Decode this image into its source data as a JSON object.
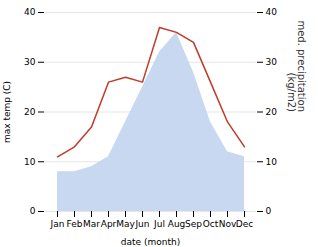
{
  "chart_data": {
    "type": "line",
    "categories": [
      "Jan",
      "Feb",
      "Mar",
      "Apr",
      "May",
      "Jun",
      "Jul",
      "Aug",
      "Sep",
      "Oct",
      "Nov",
      "Dec"
    ],
    "series": [
      {
        "type": "area",
        "axis": "y2",
        "color": "#c8d8f0",
        "values": [
          8,
          8,
          9,
          11,
          18,
          25,
          32,
          36,
          28,
          18,
          12,
          11
        ]
      },
      {
        "type": "line",
        "color": "#c0392b",
        "values": [
          11,
          13,
          17,
          26,
          27,
          26,
          37,
          36,
          34,
          26,
          18,
          13
        ]
      }
    ],
    "xlabel": "date (month)",
    "ylabel": "max temp (C)",
    "y2label": "med. precipitation\n(kg/m2)",
    "ylim": [
      0,
      40
    ],
    "yticks": [
      0,
      10,
      20,
      30,
      40
    ],
    "y2lim": [
      0,
      40
    ],
    "y2ticks": [
      0,
      10,
      20,
      30,
      40
    ],
    "grid": true
  }
}
